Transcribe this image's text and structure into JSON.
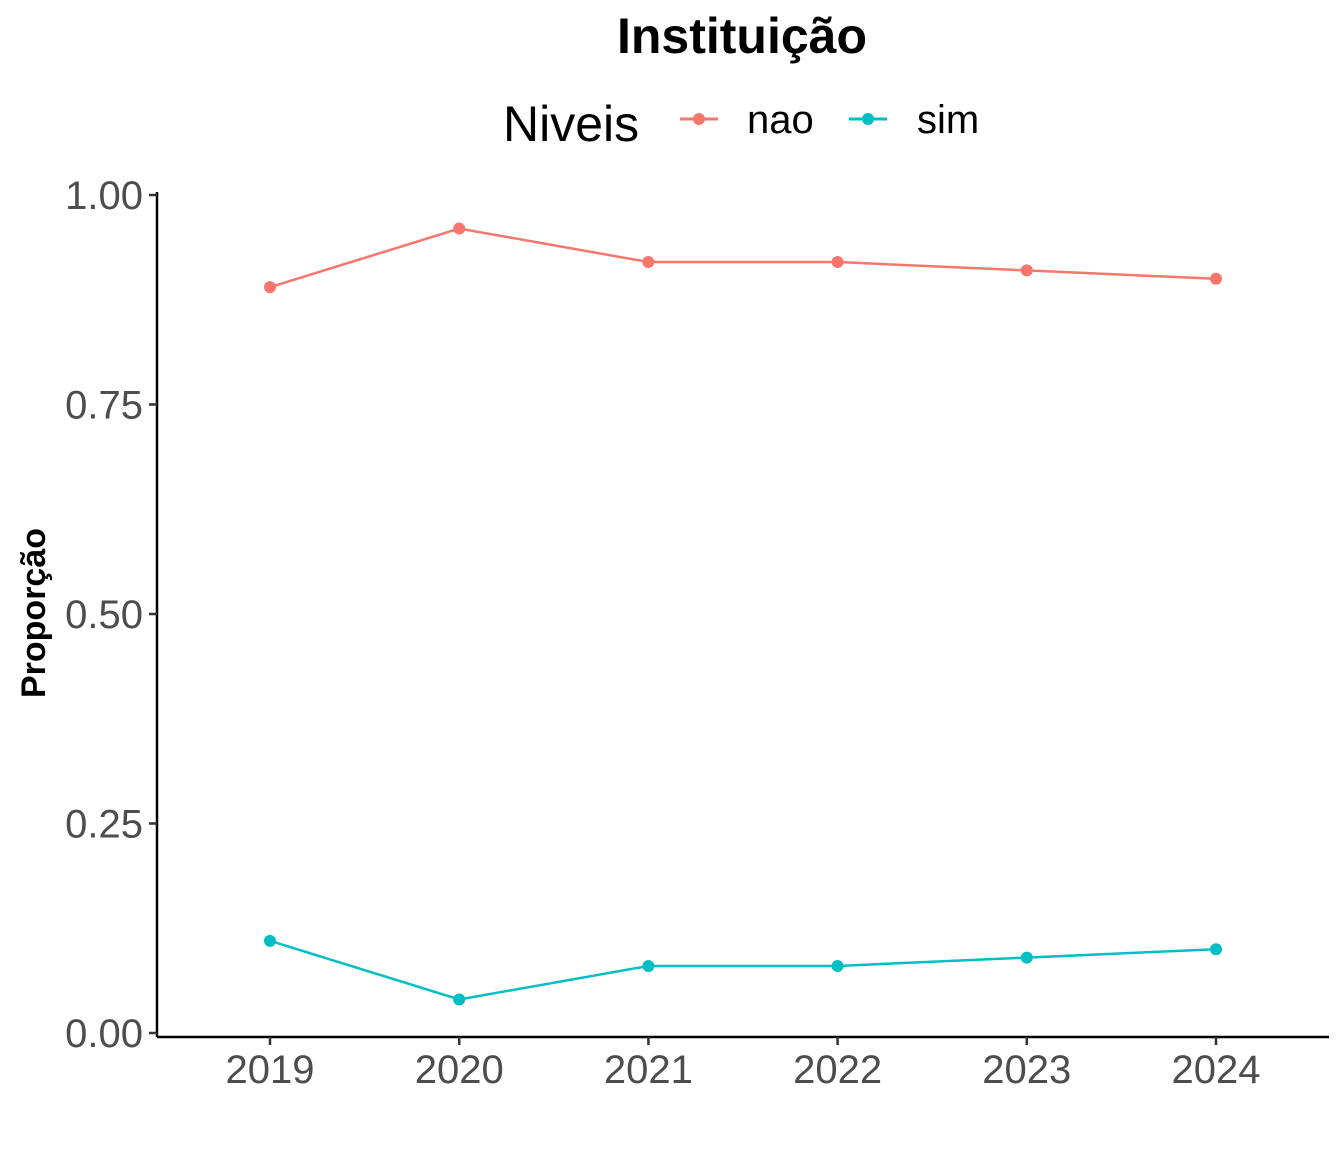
{
  "chart_data": {
    "type": "line",
    "title": "Instituição",
    "xlabel": "",
    "ylabel": "Proporção",
    "x": [
      "2019",
      "2020",
      "2021",
      "2022",
      "2023",
      "2024"
    ],
    "ylim": [
      0,
      1
    ],
    "yticks": [
      "0.00",
      "0.25",
      "0.50",
      "0.75",
      "1.00"
    ],
    "grid": false,
    "legend": {
      "title": "Niveis",
      "placement": "top"
    },
    "series": [
      {
        "name": "nao",
        "color": "#f8766d",
        "values": [
          0.89,
          0.96,
          0.92,
          0.92,
          0.91,
          0.9
        ]
      },
      {
        "name": "sim",
        "color": "#00bfc4",
        "values": [
          0.11,
          0.04,
          0.08,
          0.08,
          0.09,
          0.1
        ]
      }
    ]
  }
}
